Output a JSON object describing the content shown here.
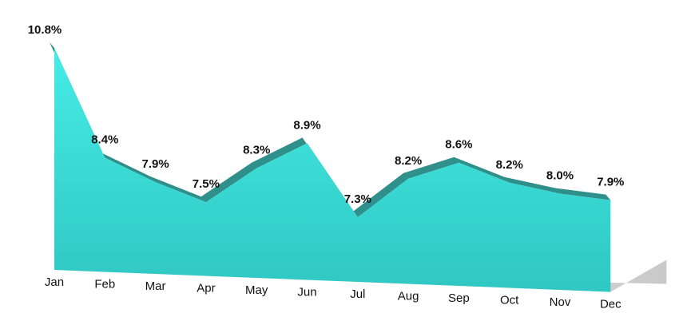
{
  "chart_data": {
    "type": "area",
    "categories": [
      "Jan",
      "Feb",
      "Mar",
      "Apr",
      "May",
      "Jun",
      "Jul",
      "Aug",
      "Sep",
      "Oct",
      "Nov",
      "Dec"
    ],
    "values": [
      10.8,
      8.4,
      7.9,
      7.5,
      8.3,
      8.9,
      7.3,
      8.2,
      8.6,
      8.2,
      8.0,
      7.9
    ],
    "value_labels": [
      "10.8%",
      "8.4%",
      "7.9%",
      "7.5%",
      "8.3%",
      "8.9%",
      "7.3%",
      "8.2%",
      "8.6%",
      "8.2%",
      "8.0%",
      "7.9%"
    ],
    "color": "#3fe0dc"
  }
}
